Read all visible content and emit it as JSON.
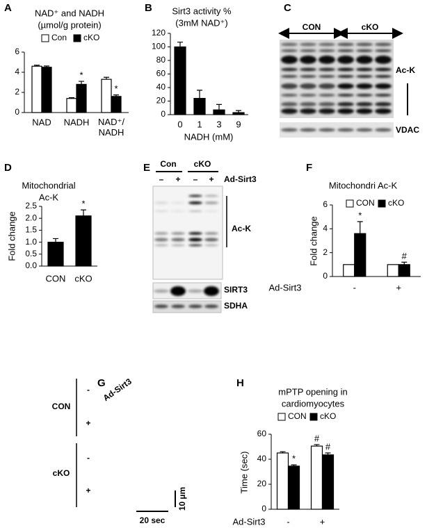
{
  "panel_labels": [
    "A",
    "B",
    "C",
    "D",
    "E",
    "F",
    "G",
    "H"
  ],
  "chart_data": [
    {
      "type": "bar",
      "title": [
        "NAD⁺ and NADH",
        "(µmol/g protein)"
      ],
      "categories": [
        "NAD",
        "NADH",
        "NAD⁺/\nNADH"
      ],
      "series": [
        {
          "name": "Con",
          "color": "#ffffff",
          "values": [
            4.6,
            1.4,
            3.3
          ],
          "errors": [
            0.1,
            0.08,
            0.2
          ]
        },
        {
          "name": "cKO",
          "color": "#000000",
          "values": [
            4.5,
            2.8,
            1.6
          ],
          "errors": [
            0.12,
            0.3,
            0.15
          ],
          "annotations": [
            null,
            "*",
            "*"
          ]
        }
      ],
      "ylim": [
        0,
        6
      ],
      "yticks": [
        0,
        2,
        4,
        6
      ]
    },
    {
      "type": "bar",
      "title": [
        "Sirt3 activity %",
        "(3mM NAD⁺)"
      ],
      "xlabel": "NADH (mM)",
      "categories": [
        "0",
        "1",
        "3",
        "9"
      ],
      "series": [
        {
          "color": "#000000",
          "values": [
            100,
            24,
            7,
            3
          ],
          "errors": [
            7,
            12,
            8,
            3
          ]
        }
      ],
      "ylim": [
        0,
        120
      ],
      "yticks": [
        0,
        20,
        40,
        60,
        80,
        100,
        120
      ]
    },
    {
      "type": "bar",
      "title": [
        "Mitochondrial",
        "Ac-K"
      ],
      "ylabel": "Fold change",
      "categories": [
        "CON",
        "cKO"
      ],
      "series": [
        {
          "color": "#000000",
          "values": [
            1.0,
            2.1
          ],
          "errors": [
            0.15,
            0.25
          ],
          "annotations": [
            null,
            "*"
          ]
        }
      ],
      "ylim": [
        0,
        2.5
      ],
      "yticks": [
        {
          "value": 0,
          "label": "0.0"
        },
        0.5,
        {
          "value": 1,
          "label": "1.0"
        },
        1.5,
        {
          "value": 2,
          "label": "2.0"
        },
        2.5
      ]
    },
    {
      "type": "bar",
      "title": [
        "Mitochondri Ac-K"
      ],
      "ylabel": "Fold change",
      "xlabel": "Ad-Sirt3",
      "categories": [
        "-",
        "+"
      ],
      "series": [
        {
          "name": "CON",
          "color": "#ffffff",
          "values": [
            1,
            1
          ]
        },
        {
          "name": "cKO",
          "color": "#000000",
          "values": [
            3.6,
            1.0
          ],
          "errors": [
            1.0,
            0.2
          ],
          "annotations": [
            "*",
            "#"
          ]
        }
      ],
      "ylim": [
        0,
        6
      ],
      "yticks": [
        0,
        2,
        4,
        6
      ]
    },
    {
      "type": "bar",
      "title": [
        "mPTP opening in",
        "cardiomyocytes"
      ],
      "ylabel": "Time (sec)",
      "xlabel": "Ad-Sirt3",
      "categories": [
        "-",
        "+"
      ],
      "series": [
        {
          "name": "CON",
          "color": "#ffffff",
          "values": [
            45,
            50.5
          ],
          "errors": [
            1,
            1.2
          ],
          "annotations": [
            null,
            "#"
          ]
        },
        {
          "name": "cKO",
          "color": "#000000",
          "values": [
            34.5,
            43.5
          ],
          "errors": [
            1,
            1.5
          ],
          "annotations": [
            "*",
            "#"
          ]
        }
      ],
      "ylim": [
        0,
        60
      ],
      "yticks": [
        0,
        20,
        40,
        60
      ]
    }
  ],
  "blot_C": {
    "groups": [
      "CON",
      "cKO"
    ],
    "labels": [
      "Ac-K",
      "VDAC"
    ]
  },
  "blot_E": {
    "groups": [
      "Con",
      "cKO"
    ],
    "treatment": "Ad-Sirt3",
    "signs": [
      "–",
      "+",
      "–",
      "+"
    ],
    "labels": [
      "Ac-K",
      "SIRT3",
      "SDHA"
    ]
  },
  "kymograph_G": {
    "treatment": "Ad-Sirt3",
    "groups": [
      "CON",
      "cKO"
    ],
    "signs": [
      "-",
      "+",
      "-",
      "+"
    ],
    "scale_y": "10 µm",
    "scale_x": "20 sec"
  }
}
